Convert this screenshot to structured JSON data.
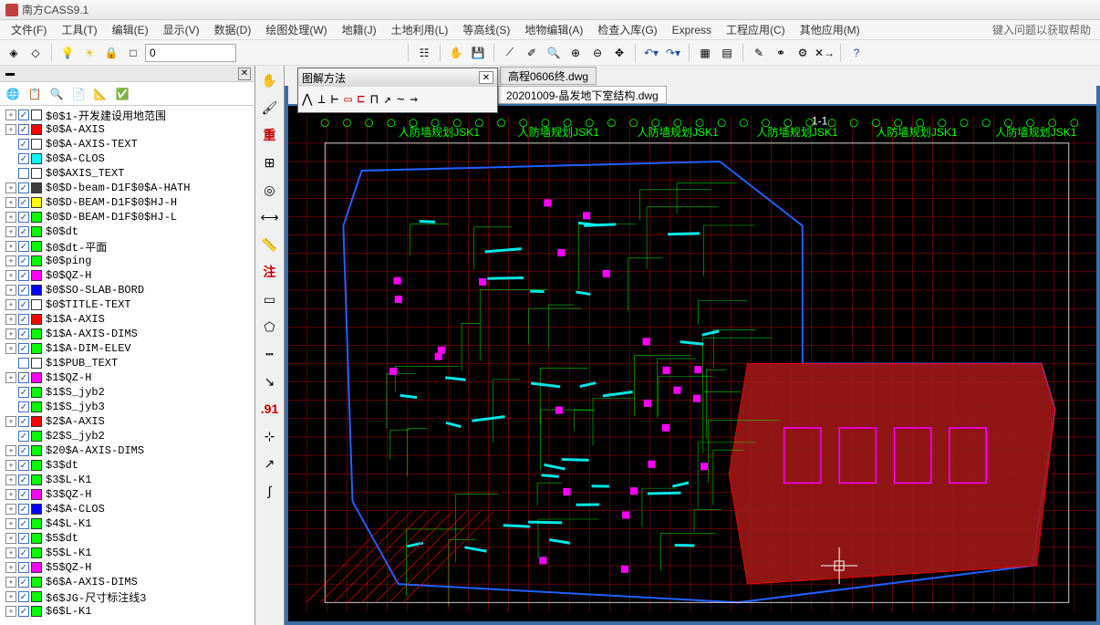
{
  "app": {
    "title": "南方CASS9.1"
  },
  "menu": {
    "items": [
      "文件(F)",
      "工具(T)",
      "编辑(E)",
      "显示(V)",
      "数据(D)",
      "绘图处理(W)",
      "地籍(J)",
      "土地利用(L)",
      "等高线(S)",
      "地物编辑(A)",
      "检查入库(G)",
      "Express",
      "工程应用(C)",
      "其他应用(M)"
    ],
    "help_hint": "键入问题以获取帮助"
  },
  "toolbar": {
    "layer_name": "0"
  },
  "floating_toolbar": {
    "title": "图解方法"
  },
  "doc_tabs": {
    "inactive": "高程0606终.dwg",
    "active": "20201009-晶发地下室结构.dwg"
  },
  "vertical_labels": [
    "重",
    "注",
    ".91"
  ],
  "layers": [
    {
      "exp": true,
      "chk": true,
      "color": "#ffffff",
      "name": "$0$1-开发建设用地范围"
    },
    {
      "exp": true,
      "chk": true,
      "color": "#ff0000",
      "name": "$0$A-AXIS"
    },
    {
      "exp": false,
      "chk": true,
      "color": "#ffffff",
      "name": "$0$A-AXIS-TEXT"
    },
    {
      "exp": false,
      "chk": true,
      "color": "#00ffff",
      "name": "$0$A-CLOS"
    },
    {
      "exp": false,
      "chk": false,
      "color": "#ffffff",
      "name": "$0$AXIS_TEXT"
    },
    {
      "exp": true,
      "chk": true,
      "color": "#404040",
      "name": "$0$D-beam-D1F$0$A-HATH"
    },
    {
      "exp": true,
      "chk": true,
      "color": "#ffff00",
      "name": "$0$D-BEAM-D1F$0$HJ-H"
    },
    {
      "exp": true,
      "chk": true,
      "color": "#00ff00",
      "name": "$0$D-BEAM-D1F$0$HJ-L"
    },
    {
      "exp": true,
      "chk": true,
      "color": "#00ff00",
      "name": "$0$dt"
    },
    {
      "exp": true,
      "chk": true,
      "color": "#00ff00",
      "name": "$0$dt-平面"
    },
    {
      "exp": true,
      "chk": true,
      "color": "#00ff00",
      "name": "$0$ping"
    },
    {
      "exp": true,
      "chk": true,
      "color": "#ff00ff",
      "name": "$0$QZ-H"
    },
    {
      "exp": true,
      "chk": true,
      "color": "#0000ff",
      "name": "$0$SO-SLAB-BORD"
    },
    {
      "exp": true,
      "chk": true,
      "color": "#ffffff",
      "name": "$0$TITLE-TEXT"
    },
    {
      "exp": true,
      "chk": true,
      "color": "#ff0000",
      "name": "$1$A-AXIS"
    },
    {
      "exp": true,
      "chk": true,
      "color": "#00ff00",
      "name": "$1$A-AXIS-DIMS"
    },
    {
      "exp": true,
      "chk": true,
      "color": "#00ff00",
      "name": "$1$A-DIM-ELEV"
    },
    {
      "exp": false,
      "chk": false,
      "color": "#ffffff",
      "name": "$1$PUB_TEXT"
    },
    {
      "exp": true,
      "chk": true,
      "color": "#ff00ff",
      "name": "$1$QZ-H"
    },
    {
      "exp": false,
      "chk": true,
      "color": "#00ff00",
      "name": "$1$S_jyb2"
    },
    {
      "exp": false,
      "chk": true,
      "color": "#00ff00",
      "name": "$1$S_jyb3"
    },
    {
      "exp": true,
      "chk": true,
      "color": "#ff0000",
      "name": "$2$A-AXIS"
    },
    {
      "exp": false,
      "chk": true,
      "color": "#00ff00",
      "name": "$2$S_jyb2"
    },
    {
      "exp": true,
      "chk": true,
      "color": "#00ff00",
      "name": "$20$A-AXIS-DIMS"
    },
    {
      "exp": true,
      "chk": true,
      "color": "#00ff00",
      "name": "$3$dt"
    },
    {
      "exp": true,
      "chk": true,
      "color": "#00ff00",
      "name": "$3$L-K1"
    },
    {
      "exp": true,
      "chk": true,
      "color": "#ff00ff",
      "name": "$3$QZ-H"
    },
    {
      "exp": true,
      "chk": true,
      "color": "#0000ff",
      "name": "$4$A-CLOS"
    },
    {
      "exp": true,
      "chk": true,
      "color": "#00ff00",
      "name": "$4$L-K1"
    },
    {
      "exp": true,
      "chk": true,
      "color": "#00ff00",
      "name": "$5$dt"
    },
    {
      "exp": true,
      "chk": true,
      "color": "#00ff00",
      "name": "$5$L-K1"
    },
    {
      "exp": true,
      "chk": true,
      "color": "#ff00ff",
      "name": "$5$QZ-H"
    },
    {
      "exp": true,
      "chk": true,
      "color": "#00ff00",
      "name": "$6$A-AXIS-DIMS"
    },
    {
      "exp": true,
      "chk": true,
      "color": "#00ff00",
      "name": "$6$JG-尺寸标注线3"
    },
    {
      "exp": true,
      "chk": true,
      "color": "#00ff00",
      "name": "$6$L-K1"
    }
  ],
  "canvas": {
    "bg": "#000000",
    "colors": {
      "axis_red": "#ff0000",
      "green": "#00ff00",
      "magenta": "#ff00ff",
      "cyan": "#00ffff",
      "blue": "#2060ff",
      "white": "#ffffff",
      "dark_red_fill": "#a01818",
      "dark_hatch": "#501010"
    }
  }
}
